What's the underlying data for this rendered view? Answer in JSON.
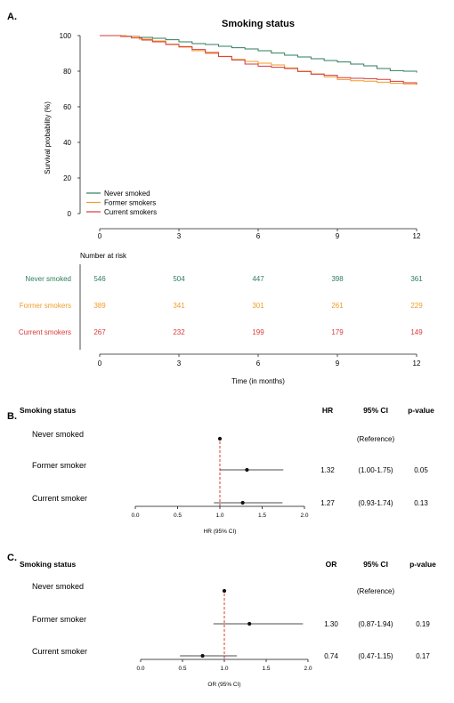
{
  "colors": {
    "never": "#2f7d5b",
    "former": "#f29b2a",
    "current": "#d83a3a",
    "ref_line": "#e03b2e"
  },
  "panel_a": {
    "letter": "A.",
    "chart_data": {
      "type": "line",
      "title": "Smoking status",
      "xlabel": "Time (in months)",
      "ylabel": "Survival probability (%)",
      "xlim": [
        0,
        12
      ],
      "ylim": [
        0,
        100
      ],
      "x_ticks": [
        "0",
        "3",
        "6",
        "9",
        "12"
      ],
      "y_ticks": [
        "0",
        "20",
        "40",
        "60",
        "80",
        "100"
      ],
      "legend_position": "bottom-left",
      "series": [
        {
          "name": "Never smoked",
          "color_key": "never",
          "points": [
            [
              0,
              100
            ],
            [
              1,
              99.6
            ],
            [
              1.5,
              99
            ],
            [
              2,
              98.5
            ],
            [
              2.5,
              97.7
            ],
            [
              3,
              96.5
            ],
            [
              3.5,
              95.5
            ],
            [
              4,
              95
            ],
            [
              4.5,
              94
            ],
            [
              5,
              93.2
            ],
            [
              5.5,
              92.5
            ],
            [
              6,
              91.5
            ],
            [
              6.5,
              90.2
            ],
            [
              7,
              89
            ],
            [
              7.5,
              88
            ],
            [
              8,
              87
            ],
            [
              8.5,
              86
            ],
            [
              9,
              85.2
            ],
            [
              9.5,
              84
            ],
            [
              10,
              83
            ],
            [
              10.5,
              81.5
            ],
            [
              11,
              80.3
            ],
            [
              11.5,
              80
            ],
            [
              12,
              79.2
            ]
          ]
        },
        {
          "name": "Former smokers",
          "color_key": "former",
          "points": [
            [
              0,
              100
            ],
            [
              1,
              99.5
            ],
            [
              1.5,
              98
            ],
            [
              2,
              97
            ],
            [
              2.5,
              95.2
            ],
            [
              3,
              93.5
            ],
            [
              3.5,
              91.5
            ],
            [
              4,
              90
            ],
            [
              4.5,
              88.2
            ],
            [
              5,
              86.6
            ],
            [
              5.5,
              85.5
            ],
            [
              6,
              84.5
            ],
            [
              6.5,
              83.5
            ],
            [
              7,
              81.8
            ],
            [
              7.5,
              80
            ],
            [
              8,
              78.5
            ],
            [
              8.5,
              76.8
            ],
            [
              9,
              75.3
            ],
            [
              9.5,
              74.6
            ],
            [
              10,
              74.4
            ],
            [
              10.5,
              73.8
            ],
            [
              11,
              73.2
            ],
            [
              11.5,
              72.8
            ],
            [
              12,
              72.2
            ]
          ]
        },
        {
          "name": "Current smokers",
          "color_key": "current",
          "points": [
            [
              0,
              100
            ],
            [
              0.8,
              99.5
            ],
            [
              1.2,
              98.7
            ],
            [
              1.6,
              97.5
            ],
            [
              2,
              96.5
            ],
            [
              2.5,
              95
            ],
            [
              3,
              93.8
            ],
            [
              3.5,
              92.2
            ],
            [
              4,
              90.5
            ],
            [
              4.5,
              88.3
            ],
            [
              5,
              86.3
            ],
            [
              5.5,
              84
            ],
            [
              6,
              82.8
            ],
            [
              6.5,
              82.2
            ],
            [
              7,
              81.5
            ],
            [
              7.5,
              79.8
            ],
            [
              8,
              78.3
            ],
            [
              8.5,
              77.7
            ],
            [
              9,
              76.4
            ],
            [
              9.5,
              76
            ],
            [
              10,
              75.8
            ],
            [
              10.5,
              75.4
            ],
            [
              11,
              74.3
            ],
            [
              11.5,
              73.5
            ],
            [
              12,
              72.8
            ]
          ]
        }
      ]
    },
    "risk_table": {
      "title": "Number at risk",
      "x_ticks": [
        "0",
        "3",
        "6",
        "9",
        "12"
      ],
      "rows": [
        {
          "label": "Never smoked",
          "color_key": "never",
          "values": [
            "546",
            "504",
            "447",
            "398",
            "361"
          ]
        },
        {
          "label": "Former smokers",
          "color_key": "former",
          "values": [
            "389",
            "341",
            "301",
            "261",
            "229"
          ]
        },
        {
          "label": "Current smokers",
          "color_key": "current",
          "values": [
            "267",
            "232",
            "199",
            "179",
            "149"
          ]
        }
      ]
    }
  },
  "panel_b": {
    "letter": "B.",
    "chart_data": {
      "type": "scatter",
      "header": {
        "group": "Smoking status",
        "measure": "HR",
        "ci": "95% CI",
        "p": "p-value"
      },
      "xlabel": "HR (95% CI)",
      "xlim": [
        0,
        2
      ],
      "x_ticks": [
        "0.0",
        "0.5",
        "1.0",
        "1.5",
        "2.0"
      ],
      "reference_value": 1.0,
      "rows": [
        {
          "label": "Never smoked",
          "estimate": 1.0,
          "low": 1.0,
          "high": 1.0,
          "measure": "",
          "ci": "(Reference)",
          "p": ""
        },
        {
          "label": "Former smoker",
          "estimate": 1.32,
          "low": 1.0,
          "high": 1.75,
          "measure": "1.32",
          "ci": "(1.00-1.75)",
          "p": "0.05"
        },
        {
          "label": "Current smoker",
          "estimate": 1.27,
          "low": 0.93,
          "high": 1.74,
          "measure": "1.27",
          "ci": "(0.93-1.74)",
          "p": "0.13"
        }
      ]
    }
  },
  "panel_c": {
    "letter": "C.",
    "chart_data": {
      "type": "scatter",
      "header": {
        "group": "Smoking status",
        "measure": "OR",
        "ci": "95% CI",
        "p": "p-value"
      },
      "xlabel": "OR (95% CI)",
      "xlim": [
        0,
        2
      ],
      "x_ticks": [
        "0.0",
        "0.5",
        "1.0",
        "1.5",
        "2.0"
      ],
      "reference_value": 1.0,
      "rows": [
        {
          "label": "Never smoked",
          "estimate": 1.0,
          "low": 1.0,
          "high": 1.0,
          "measure": "",
          "ci": "(Reference)",
          "p": ""
        },
        {
          "label": "Former smoker",
          "estimate": 1.3,
          "low": 0.87,
          "high": 1.94,
          "measure": "1.30",
          "ci": "(0.87-1.94)",
          "p": "0.19"
        },
        {
          "label": "Current smoker",
          "estimate": 0.74,
          "low": 0.47,
          "high": 1.15,
          "measure": "0.74",
          "ci": "(0.47-1.15)",
          "p": "0.17"
        }
      ]
    }
  }
}
